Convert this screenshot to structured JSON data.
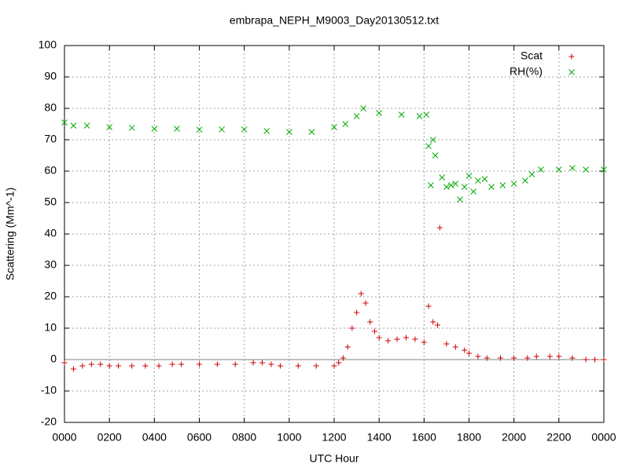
{
  "chart_data": {
    "type": "scatter",
    "title": "embrapa_NEPH_M9003_Day20130512.txt",
    "x_label": "UTC Hour",
    "y_label": "Scattering (Mm^-1)",
    "xlim": [
      0,
      2400
    ],
    "xticks": [
      {
        "value": 0,
        "label": "0000"
      },
      {
        "value": 200,
        "label": "0200"
      },
      {
        "value": 400,
        "label": "0400"
      },
      {
        "value": 600,
        "label": "0600"
      },
      {
        "value": 800,
        "label": "0800"
      },
      1000,
      1200,
      1400,
      1600,
      1800,
      2000,
      2200,
      {
        "value": 2400,
        "label": "0000"
      }
    ],
    "ylim": [
      -20,
      100
    ],
    "yticks": [
      -20,
      -10,
      0,
      10,
      20,
      30,
      40,
      50,
      60,
      70,
      80,
      90,
      100
    ],
    "grid": true,
    "legend": "top-right",
    "series": [
      {
        "name": "Scat",
        "color": "#cc0000",
        "marker": "plus",
        "x": [
          0,
          40,
          80,
          120,
          160,
          200,
          240,
          300,
          360,
          420,
          480,
          520,
          600,
          680,
          760,
          840,
          880,
          920,
          960,
          1040,
          1120,
          1200,
          1220,
          1240,
          1260,
          1280,
          1300,
          1320,
          1340,
          1360,
          1380,
          1400,
          1440,
          1480,
          1520,
          1560,
          1600,
          1620,
          1640,
          1660,
          1670,
          1700,
          1740,
          1780,
          1800,
          1840,
          1880,
          1940,
          2000,
          2060,
          2100,
          2160,
          2200,
          2260,
          2320,
          2360,
          2400
        ],
        "values": [
          -1,
          -3,
          -2,
          -1.5,
          -1.5,
          -2,
          -2,
          -2,
          -2,
          -2,
          -1.5,
          -1.5,
          -1.5,
          -1.5,
          -1.5,
          -1,
          -1,
          -1.5,
          -2,
          -2,
          -2,
          -2,
          -1,
          0.5,
          4,
          10,
          15,
          21,
          18,
          12,
          9,
          7,
          6,
          6.5,
          7,
          6.5,
          5.5,
          17,
          12,
          11,
          42,
          5,
          4,
          3,
          2,
          1,
          0.5,
          0.5,
          0.5,
          0.5,
          1,
          1,
          1,
          0.5,
          0,
          0,
          0
        ]
      },
      {
        "name": "RH(%)",
        "color": "#00aa00",
        "marker": "cross",
        "x": [
          0,
          40,
          100,
          200,
          300,
          400,
          500,
          600,
          700,
          800,
          900,
          1000,
          1100,
          1200,
          1250,
          1300,
          1330,
          1400,
          1500,
          1580,
          1610,
          1620,
          1640,
          1650,
          1630,
          1680,
          1700,
          1720,
          1740,
          1760,
          1780,
          1800,
          1820,
          1840,
          1870,
          1900,
          1950,
          2000,
          2050,
          2080,
          2120,
          2200,
          2260,
          2320,
          2400
        ],
        "values": [
          75.5,
          74.5,
          74.5,
          74,
          73.8,
          73.5,
          73.5,
          73.2,
          73.3,
          73.3,
          72.8,
          72.5,
          72.5,
          74,
          75,
          77.5,
          80,
          78.5,
          78,
          77.5,
          78,
          68,
          70,
          65,
          55.5,
          58,
          55,
          55.5,
          56,
          51,
          55,
          58.5,
          53.5,
          57,
          57.5,
          55,
          55.5,
          56,
          57,
          59,
          60.5,
          60.5,
          61,
          60.5,
          60.5
        ]
      }
    ]
  }
}
